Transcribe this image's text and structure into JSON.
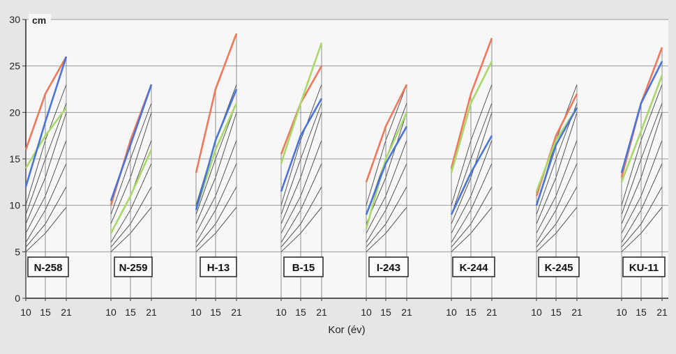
{
  "chart_data": {
    "type": "line",
    "xlabel": "Kor (év)",
    "unit_label": "cm",
    "ylim": [
      0,
      30
    ],
    "y_ticks": [
      0,
      5,
      10,
      15,
      20,
      25,
      30
    ],
    "x_tick_labels": [
      "10",
      "15",
      "21"
    ],
    "grid": true,
    "reference_lines": [
      [
        5.0,
        7.0,
        9.8
      ],
      [
        5.5,
        8.0,
        12.0
      ],
      [
        6.0,
        9.5,
        14.5
      ],
      [
        7.0,
        11.0,
        17.0
      ],
      [
        8.0,
        13.0,
        20.0
      ],
      [
        9.0,
        15.0,
        21.0
      ],
      [
        10.0,
        17.0,
        23.0
      ]
    ],
    "panels": [
      {
        "label": "N-258",
        "series": [
          {
            "color": "#f0785a",
            "values": [
              16.0,
              22.0,
              26.0
            ]
          },
          {
            "color": "#a8d868",
            "values": [
              14.0,
              17.5,
              20.5
            ]
          },
          {
            "color": "#4a74d8",
            "values": [
              12.0,
              19.0,
              26.0
            ]
          }
        ]
      },
      {
        "label": "N-259",
        "series": [
          {
            "color": "#f0785a",
            "values": [
              10.0,
              17.0,
              23.0
            ]
          },
          {
            "color": "#a8d868",
            "values": [
              7.0,
              11.0,
              16.0
            ]
          },
          {
            "color": "#4a74d8",
            "values": [
              10.5,
              16.5,
              23.0
            ]
          }
        ]
      },
      {
        "label": "H-13",
        "series": [
          {
            "color": "#f0785a",
            "values": [
              13.5,
              22.5,
              28.5
            ]
          },
          {
            "color": "#a8d868",
            "values": [
              9.5,
              16.0,
              21.0
            ]
          },
          {
            "color": "#4a74d8",
            "values": [
              9.5,
              17.0,
              22.5
            ]
          }
        ]
      },
      {
        "label": "B-15",
        "series": [
          {
            "color": "#f0785a",
            "values": [
              15.5,
              21.0,
              25.0
            ]
          },
          {
            "color": "#a8d868",
            "values": [
              14.5,
              21.0,
              27.5
            ]
          },
          {
            "color": "#4a74d8",
            "values": [
              11.5,
              17.5,
              21.5
            ]
          }
        ]
      },
      {
        "label": "I-243",
        "series": [
          {
            "color": "#f0785a",
            "values": [
              12.5,
              18.5,
              23.0
            ]
          },
          {
            "color": "#a8d868",
            "values": [
              7.5,
              15.0,
              20.0
            ]
          },
          {
            "color": "#4a74d8",
            "values": [
              9.0,
              14.5,
              18.5
            ]
          }
        ]
      },
      {
        "label": "K-244",
        "series": [
          {
            "color": "#f0785a",
            "values": [
              14.0,
              22.0,
              28.0
            ]
          },
          {
            "color": "#a8d868",
            "values": [
              13.5,
              21.0,
              25.5
            ]
          },
          {
            "color": "#4a74d8",
            "values": [
              9.0,
              13.5,
              17.5
            ]
          }
        ]
      },
      {
        "label": "K-245",
        "series": [
          {
            "color": "#f0785a",
            "values": [
              11.0,
              17.5,
              22.0
            ]
          },
          {
            "color": "#a8d868",
            "values": [
              11.5,
              17.0,
              20.5
            ]
          },
          {
            "color": "#4a74d8",
            "values": [
              10.0,
              16.5,
              20.5
            ]
          }
        ]
      },
      {
        "label": "KU-11",
        "series": [
          {
            "color": "#f0785a",
            "values": [
              13.0,
              21.0,
              27.0
            ]
          },
          {
            "color": "#a8d868",
            "values": [
              12.5,
              18.0,
              24.0
            ]
          },
          {
            "color": "#4a74d8",
            "values": [
              13.5,
              21.0,
              25.5
            ]
          }
        ]
      }
    ]
  }
}
